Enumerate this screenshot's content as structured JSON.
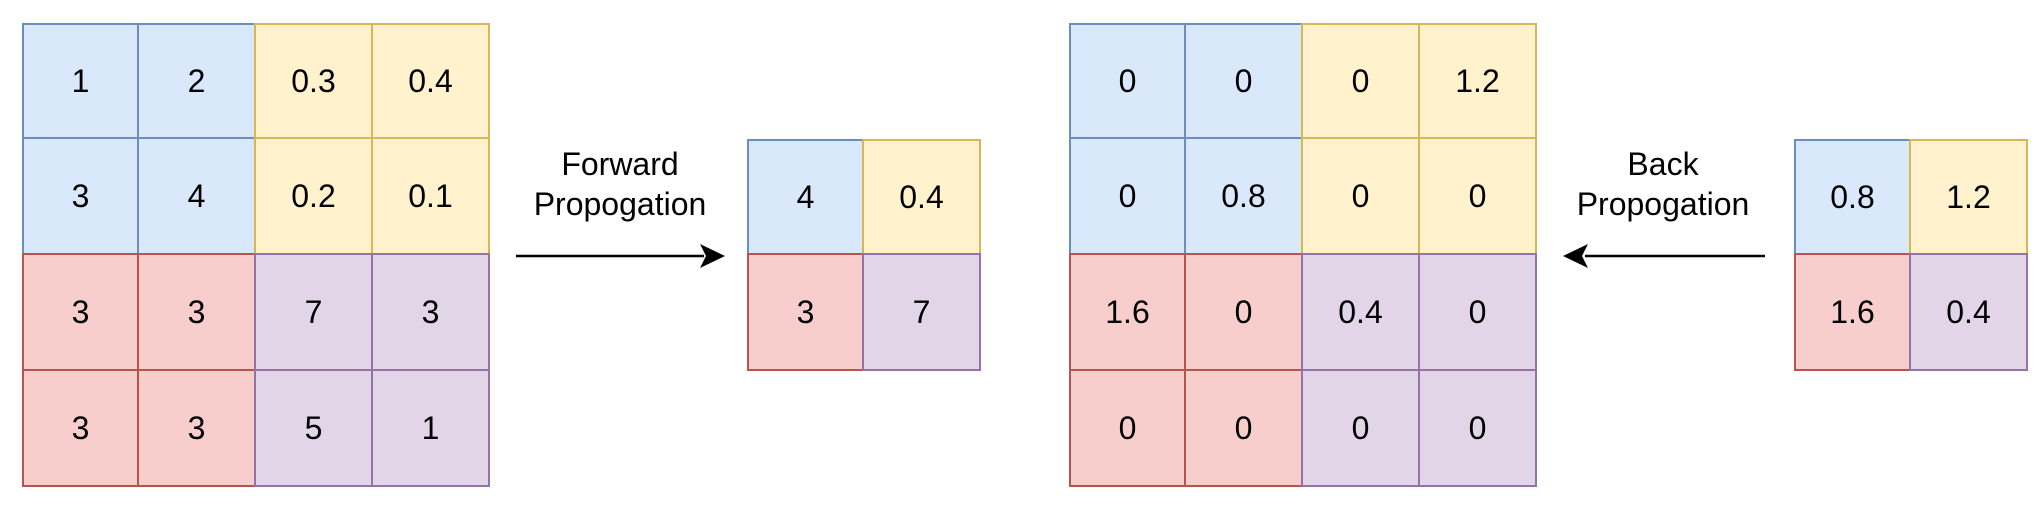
{
  "colors": {
    "blue": {
      "fill": "#dae8fc",
      "stroke": "#6c8ebf"
    },
    "yellow": {
      "fill": "#fff2cc",
      "stroke": "#d6b656"
    },
    "red": {
      "fill": "#f8cecc",
      "stroke": "#b85450"
    },
    "purple": {
      "fill": "#e1d5e7",
      "stroke": "#9673a6"
    },
    "arrow": "#000000"
  },
  "input_matrix": {
    "rows": [
      [
        {
          "value": "1",
          "color": "blue"
        },
        {
          "value": "2",
          "color": "blue"
        },
        {
          "value": "0.3",
          "color": "yellow"
        },
        {
          "value": "0.4",
          "color": "yellow"
        }
      ],
      [
        {
          "value": "3",
          "color": "blue"
        },
        {
          "value": "4",
          "color": "blue"
        },
        {
          "value": "0.2",
          "color": "yellow"
        },
        {
          "value": "0.1",
          "color": "yellow"
        }
      ],
      [
        {
          "value": "3",
          "color": "red"
        },
        {
          "value": "3",
          "color": "red"
        },
        {
          "value": "7",
          "color": "purple"
        },
        {
          "value": "3",
          "color": "purple"
        }
      ],
      [
        {
          "value": "3",
          "color": "red"
        },
        {
          "value": "3",
          "color": "red"
        },
        {
          "value": "5",
          "color": "purple"
        },
        {
          "value": "1",
          "color": "purple"
        }
      ]
    ]
  },
  "forward_label": "Forward\nPropogation",
  "pooled_output": {
    "rows": [
      [
        {
          "value": "4",
          "color": "blue"
        },
        {
          "value": "0.4",
          "color": "yellow"
        }
      ],
      [
        {
          "value": "3",
          "color": "red"
        },
        {
          "value": "7",
          "color": "purple"
        }
      ]
    ]
  },
  "gradient_input": {
    "rows": [
      [
        {
          "value": "0",
          "color": "blue"
        },
        {
          "value": "0",
          "color": "blue"
        },
        {
          "value": "0",
          "color": "yellow"
        },
        {
          "value": "1.2",
          "color": "yellow"
        }
      ],
      [
        {
          "value": "0",
          "color": "blue"
        },
        {
          "value": "0.8",
          "color": "blue"
        },
        {
          "value": "0",
          "color": "yellow"
        },
        {
          "value": "0",
          "color": "yellow"
        }
      ],
      [
        {
          "value": "1.6",
          "color": "red"
        },
        {
          "value": "0",
          "color": "red"
        },
        {
          "value": "0.4",
          "color": "purple"
        },
        {
          "value": "0",
          "color": "purple"
        }
      ],
      [
        {
          "value": "0",
          "color": "red"
        },
        {
          "value": "0",
          "color": "red"
        },
        {
          "value": "0",
          "color": "purple"
        },
        {
          "value": "0",
          "color": "purple"
        }
      ]
    ]
  },
  "back_label": "Back\nPropogation",
  "gradient_output": {
    "rows": [
      [
        {
          "value": "0.8",
          "color": "blue"
        },
        {
          "value": "1.2",
          "color": "yellow"
        }
      ],
      [
        {
          "value": "1.6",
          "color": "red"
        },
        {
          "value": "0.4",
          "color": "purple"
        }
      ]
    ]
  }
}
